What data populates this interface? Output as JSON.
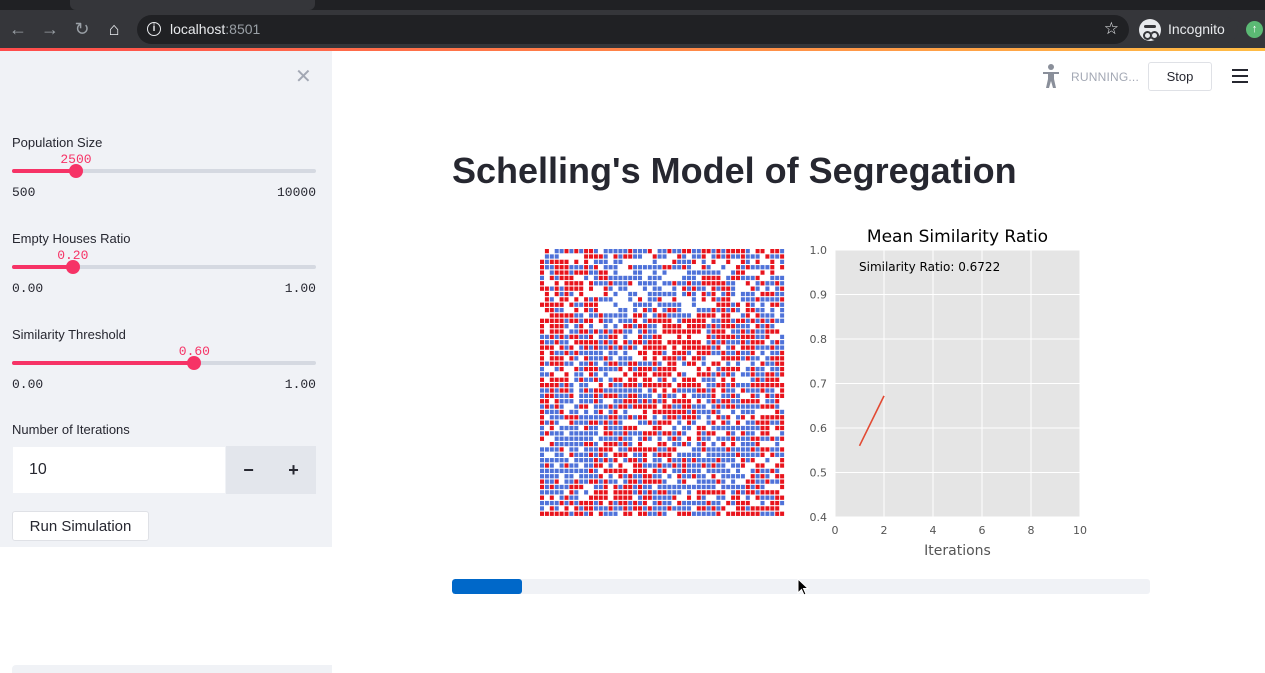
{
  "browser": {
    "url_host": "localhost",
    "url_port": ":8501",
    "profile_label": "Incognito",
    "icons": [
      "back-icon",
      "forward-icon",
      "reload-icon",
      "home-icon",
      "info-icon",
      "star-icon",
      "incognito-icon",
      "update-icon"
    ]
  },
  "sidebar": {
    "close_icon": "✕",
    "sliders": [
      {
        "label": "Population Size",
        "value_text": "2500",
        "min_text": "500",
        "max_text": "10000",
        "fraction": 0.2105
      },
      {
        "label": "Empty Houses Ratio",
        "value_text": "0.20",
        "min_text": "0.00",
        "max_text": "1.00",
        "fraction": 0.2
      },
      {
        "label": "Similarity Threshold",
        "value_text": "0.60",
        "min_text": "0.00",
        "max_text": "1.00",
        "fraction": 0.6
      }
    ],
    "iterations": {
      "label": "Number of Iterations",
      "value": "10",
      "minus_label": "−",
      "plus_label": "+"
    },
    "run_button_label": "Run Simulation"
  },
  "header": {
    "status_text": "RUNNING...",
    "stop_label": "Stop"
  },
  "main": {
    "title": "Schelling's Model of Segregation",
    "progress_fraction": 0.1
  },
  "colors": {
    "accent": "#f63366",
    "agent_red": "#e8141d",
    "agent_blue": "#4f72d9",
    "progress": "#0068c9",
    "line": "#e24a33",
    "plot_bg": "#e5e5e5"
  },
  "chart_data": [
    {
      "type": "heatmap",
      "description_values": "grid of red and blue agents with empty cells",
      "grid_size": 50,
      "categories": [
        "red",
        "blue",
        "empty"
      ]
    },
    {
      "type": "line",
      "title": "Mean Similarity Ratio",
      "xlabel": "Iterations",
      "ylabel": "",
      "xlim": [
        0,
        10
      ],
      "ylim": [
        0.4,
        1.0
      ],
      "xticks": [
        "0",
        "2",
        "4",
        "6",
        "8",
        "10"
      ],
      "yticks": [
        "0.4",
        "0.5",
        "0.6",
        "0.7",
        "0.8",
        "0.9",
        "1.0"
      ],
      "annotation": "Similarity Ratio: 0.6722",
      "grid": true,
      "x": [
        1,
        2
      ],
      "y": [
        0.56,
        0.6722
      ]
    }
  ]
}
